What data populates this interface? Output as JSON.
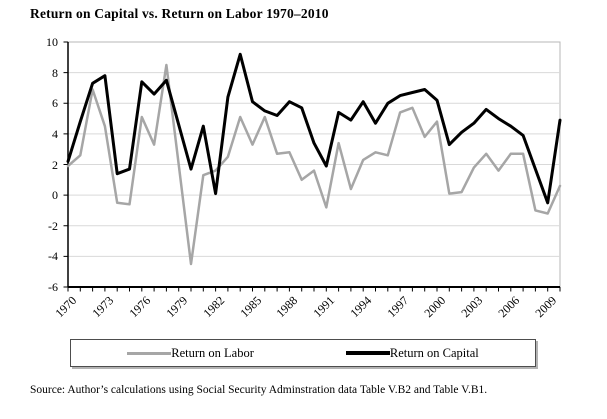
{
  "title": "Return on Capital vs. Return on Labor 1970–2010",
  "source": "Source: Author’s calculations using Social Security Adminstration data Table V.B2 and Table V.B1.",
  "legend": {
    "labor_label": "Return on Labor",
    "capital_label": "Return on Capital"
  },
  "colors": {
    "labor": "#a6a6a6",
    "capital": "#000000",
    "gridline": "#d9d9d9",
    "plot_border": "#b7b7b7",
    "axis": "#000000"
  },
  "chart_data": {
    "type": "line",
    "title": "Return on Capital vs. Return on Labor 1970–2010",
    "xlabel": "",
    "ylabel": "",
    "ylim": [
      -6,
      10
    ],
    "ytick_step": 2,
    "grid": true,
    "legend_position": "bottom",
    "x": [
      1970,
      1971,
      1972,
      1973,
      1974,
      1975,
      1976,
      1977,
      1978,
      1979,
      1980,
      1981,
      1982,
      1983,
      1984,
      1985,
      1986,
      1987,
      1988,
      1989,
      1990,
      1991,
      1992,
      1993,
      1994,
      1995,
      1996,
      1997,
      1998,
      1999,
      2000,
      2001,
      2002,
      2003,
      2004,
      2005,
      2006,
      2007,
      2008,
      2009,
      2010
    ],
    "series": [
      {
        "name": "Return on Labor",
        "color_key": "labor",
        "width": 2.5,
        "values": [
          1.9,
          2.6,
          6.9,
          4.5,
          -0.5,
          -0.6,
          5.1,
          3.3,
          8.5,
          2.0,
          -4.5,
          1.3,
          1.6,
          2.5,
          5.1,
          3.3,
          5.1,
          2.7,
          2.8,
          1.0,
          1.6,
          -0.8,
          3.4,
          0.4,
          2.3,
          2.8,
          2.6,
          5.4,
          5.7,
          3.8,
          4.8,
          0.1,
          0.2,
          1.8,
          2.7,
          1.6,
          2.7,
          2.7,
          -1.0,
          -1.2,
          0.6
        ]
      },
      {
        "name": "Return on Capital",
        "color_key": "capital",
        "width": 3,
        "values": [
          2.2,
          4.8,
          7.3,
          7.8,
          1.4,
          1.7,
          7.4,
          6.6,
          7.5,
          4.6,
          1.7,
          4.5,
          0.1,
          6.4,
          9.2,
          6.1,
          5.5,
          5.2,
          6.1,
          5.7,
          3.4,
          1.9,
          5.4,
          4.9,
          6.1,
          4.7,
          6.0,
          6.5,
          6.7,
          6.9,
          6.2,
          3.3,
          4.1,
          4.7,
          5.6,
          5.0,
          4.5,
          3.9,
          1.7,
          -0.5,
          4.9
        ]
      }
    ],
    "xtick_labels": [
      "1970",
      "1973",
      "1976",
      "1979",
      "1982",
      "1985",
      "1988",
      "1991",
      "1994",
      "1997",
      "2000",
      "2003",
      "2006",
      "2009"
    ],
    "ytick_labels": [
      "10",
      "8",
      "6",
      "4",
      "2",
      "0",
      "-2",
      "-4",
      "-6"
    ]
  }
}
